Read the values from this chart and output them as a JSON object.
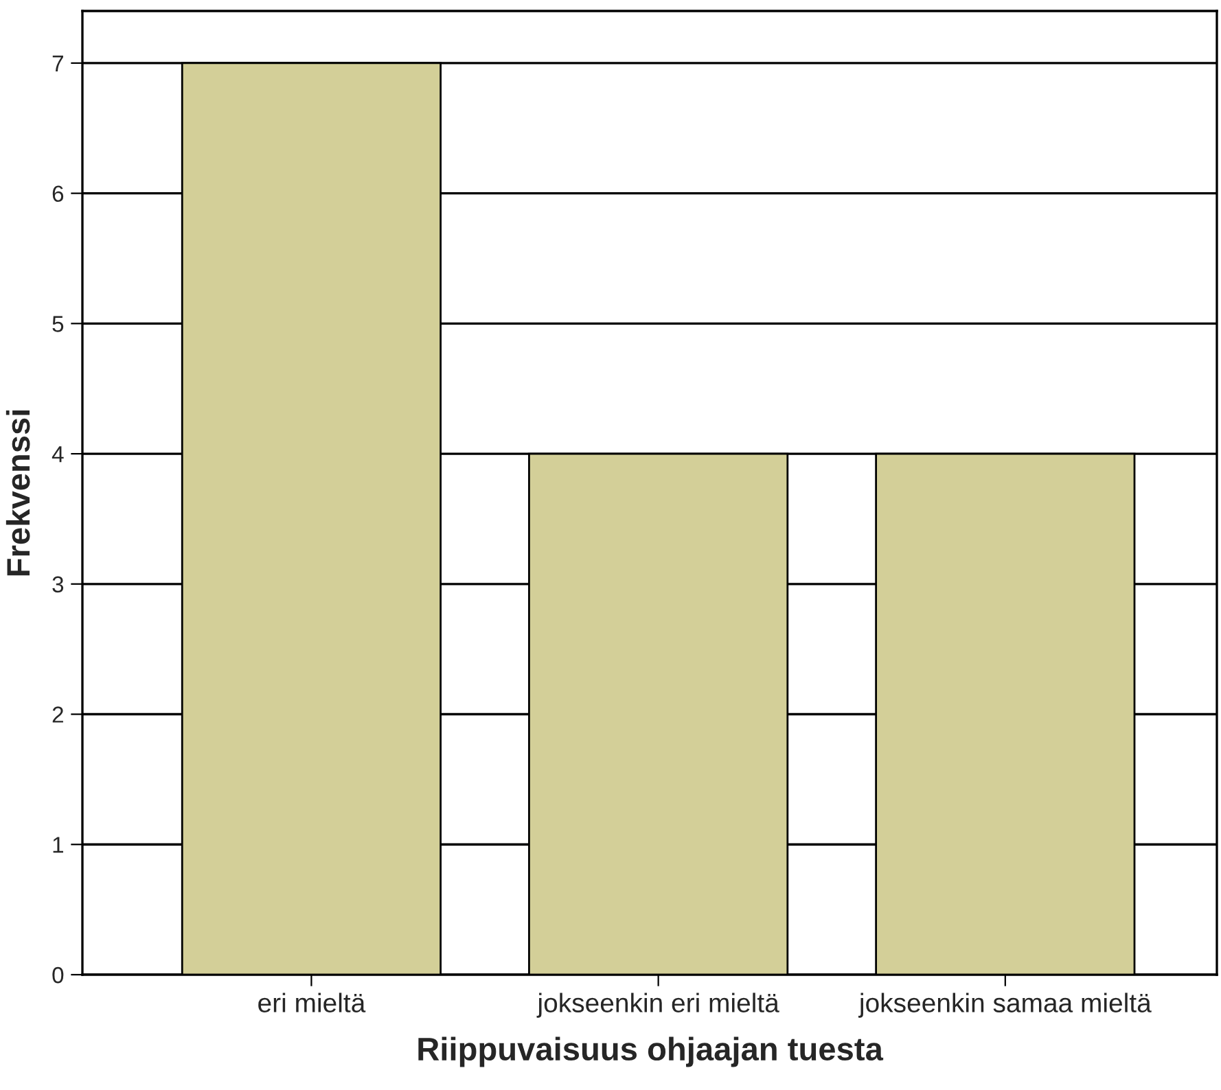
{
  "chart_data": {
    "type": "bar",
    "xlabel": "Riippuvaisuus ohjaajan tuesta",
    "ylabel": "Frekvenssi",
    "categories": [
      "eri mieltä",
      "jokseenkin eri mieltä",
      "jokseenkin samaa mieltä"
    ],
    "values": [
      7,
      4,
      4
    ],
    "color": "#d3cf98",
    "ylim": [
      0,
      7.4
    ],
    "yticks": [
      0,
      1,
      2,
      3,
      4,
      5,
      6,
      7
    ],
    "grid": "y"
  }
}
